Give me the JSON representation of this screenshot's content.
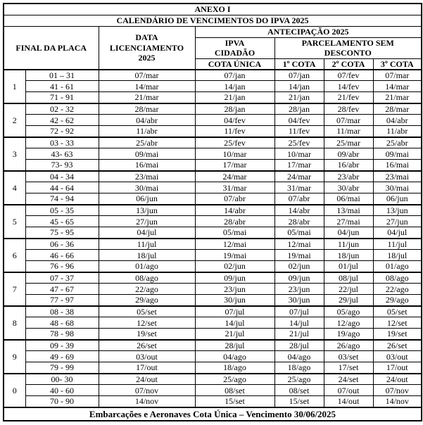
{
  "title": "ANEXO I",
  "subtitle": "CALENDÁRIO DE VENCIMENTOS DO IPVA 2025",
  "header": {
    "final_da_placa": "FINAL DA PLACA",
    "data_licenciamento": "DATA\nLICENCIAMENTO\n2025",
    "antecipacao": "ANTECIPAÇÃO 2025",
    "ipva_cidadao": "IPVA\nCIDADÃO",
    "parcelamento": "PARCELAMENTO SEM\nDESCONTO",
    "cota_unica": "COTA ÚNICA",
    "cota1": "1º COTA",
    "cota2": "2º COTA",
    "cota3": "3º COTA"
  },
  "groups": [
    {
      "digit": "1",
      "rows": [
        [
          "01 – 31",
          "07/mar",
          "07/jan",
          "07/jan",
          "07/fev",
          "07/mar"
        ],
        [
          "41 - 61",
          "14/mar",
          "14/jan",
          "14/jan",
          "14/fev",
          "14/mar"
        ],
        [
          "71 - 91",
          "21/mar",
          "21/jan",
          "21/jan",
          "21/fev",
          "21/mar"
        ]
      ]
    },
    {
      "digit": "2",
      "rows": [
        [
          "02 - 32",
          "28/mar",
          "28/jan",
          "28/jan",
          "28/fev",
          "28/mar"
        ],
        [
          "42 - 62",
          "04/abr",
          "04/fev",
          "04/fev",
          "07/mar",
          "04/abr"
        ],
        [
          "72 - 92",
          "11/abr",
          "11/fev",
          "11/fev",
          "11/mar",
          "11/abr"
        ]
      ]
    },
    {
      "digit": "3",
      "rows": [
        [
          "03 - 33",
          "25/abr",
          "25/fev",
          "25/fev",
          "25/mar",
          "25/abr"
        ],
        [
          "43- 63",
          "09/mai",
          "10/mar",
          "10/mar",
          "09/abr",
          "09/mai"
        ],
        [
          "73- 93",
          "16/mai",
          "17/mar",
          "17/mar",
          "16/abr",
          "16/mai"
        ]
      ]
    },
    {
      "digit": "4",
      "rows": [
        [
          "04 - 34",
          "23/mai",
          "24/mar",
          "24/mar",
          "23/abr",
          "23/mai"
        ],
        [
          "44 - 64",
          "30/mai",
          "31/mar",
          "31/mar",
          "30/abr",
          "30/mai"
        ],
        [
          "74 - 94",
          "06/jun",
          "07/abr",
          "07/abr",
          "06/mai",
          "06/jun"
        ]
      ]
    },
    {
      "digit": "5",
      "rows": [
        [
          "05 - 35",
          "13/jun",
          "14/abr",
          "14/abr",
          "13/mai",
          "13/jun"
        ],
        [
          "45 - 65",
          "27/jun",
          "28/abr",
          "28/abr",
          "27/mai",
          "27/jun"
        ],
        [
          "75 - 95",
          "04/jul",
          "05/mai",
          "05/mai",
          "04/jun",
          "04/jul"
        ]
      ]
    },
    {
      "digit": "6",
      "rows": [
        [
          "06 - 36",
          "11/jul",
          "12/mai",
          "12/mai",
          "11/jun",
          "11/jul"
        ],
        [
          "46 - 66",
          "18/jul",
          "19/mai",
          "19/mai",
          "18/jun",
          "18/jul"
        ],
        [
          "76 - 96",
          "01/ago",
          "02/jun",
          "02/jun",
          "01/jul",
          "01/ago"
        ]
      ]
    },
    {
      "digit": "7",
      "rows": [
        [
          "07 - 37",
          "08/ago",
          "09/jun",
          "09/jun",
          "08/jul",
          "08/ago"
        ],
        [
          "47 - 67",
          "22/ago",
          "23/jun",
          "23/jun",
          "22/jul",
          "22/ago"
        ],
        [
          "77 - 97",
          "29/ago",
          "30/jun",
          "30/jun",
          "29/jul",
          "29/ago"
        ]
      ]
    },
    {
      "digit": "8",
      "rows": [
        [
          "08 - 38",
          "05/set",
          "07/jul",
          "07/jul",
          "05/ago",
          "05/set"
        ],
        [
          "48 - 68",
          "12/set",
          "14/jul",
          "14/jul",
          "12/ago",
          "12/set"
        ],
        [
          "78 - 98",
          "19/set",
          "21/jul",
          "21/jul",
          "19/ago",
          "19/set"
        ]
      ]
    },
    {
      "digit": "9",
      "rows": [
        [
          "09 - 39",
          "26/set",
          "28/jul",
          "28/jul",
          "26/ago",
          "26/set"
        ],
        [
          "49 - 69",
          "03/out",
          "04/ago",
          "04/ago",
          "03/set",
          "03/out"
        ],
        [
          "79 - 99",
          "17/out",
          "18/ago",
          "18/ago",
          "17/set",
          "17/out"
        ]
      ]
    },
    {
      "digit": "0",
      "rows": [
        [
          "00- 30",
          "24/out",
          "25/ago",
          "25/ago",
          "24/set",
          "24/out"
        ],
        [
          "40 - 60",
          "07/nov",
          "08/set",
          "08/set",
          "07/out",
          "07/nov"
        ],
        [
          "70 - 90",
          "14/nov",
          "15/set",
          "15/set",
          "14/out",
          "14/nov"
        ]
      ]
    }
  ],
  "footer": "Embarcações e Aeronaves Cota Única – Vencimento 30/06/2025"
}
